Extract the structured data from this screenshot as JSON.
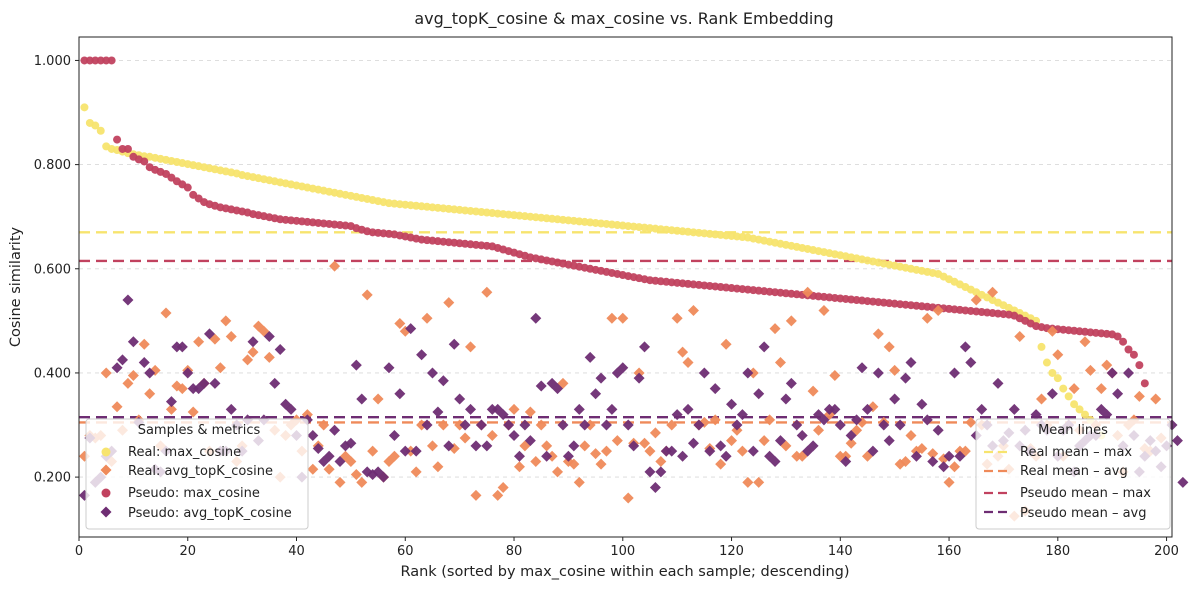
{
  "chart_data": {
    "type": "scatter",
    "title": "avg_topK_cosine & max_cosine vs. Rank Embedding",
    "xlabel": "Rank (sorted by max_cosine within each sample; descending)",
    "ylabel": "Cosine similarity",
    "xlim": [
      0,
      201
    ],
    "ylim": [
      0.085,
      1.045
    ],
    "xticks": [
      0,
      20,
      40,
      60,
      80,
      100,
      120,
      140,
      160,
      180,
      200
    ],
    "yticks": [
      0.2,
      0.4,
      0.6,
      0.8,
      1.0
    ],
    "ytick_labels": [
      "0.200",
      "0.400",
      "0.600",
      "0.800",
      "1.000"
    ],
    "grid": "y dashed",
    "legends": [
      {
        "title": "Samples & metrics",
        "placement": "lower-left",
        "entries": [
          "Real: max_cosine",
          "Real: avg_topK_cosine",
          "Pseudo: max_cosine",
          "Pseudo: avg_topK_cosine"
        ]
      },
      {
        "title": "Mean lines",
        "placement": "lower-right",
        "entries": [
          "Real mean – max",
          "Real mean – avg",
          "Pseudo mean – max",
          "Pseudo mean – avg"
        ]
      }
    ],
    "colors": {
      "real_max": "#f7e46e",
      "real_avg": "#ef8a5a",
      "pseudo_max": "#c1425f",
      "pseudo_avg": "#6e2d73"
    },
    "mean_lines": [
      {
        "name": "Real mean – max",
        "y": 0.67
      },
      {
        "name": "Real mean – avg",
        "y": 0.305
      },
      {
        "name": "Pseudo mean – max",
        "y": 0.615
      },
      {
        "name": "Pseudo mean – avg",
        "y": 0.315
      }
    ],
    "series": [
      {
        "name": "Real: max_cosine",
        "key": "real_max",
        "marker": "circle",
        "x_start": 1,
        "values": [
          0.91,
          0.88,
          0.875,
          0.865,
          0.835,
          0.83,
          0.828,
          0.825,
          0.822,
          0.82,
          0.818,
          0.816,
          0.815,
          0.813,
          0.811,
          0.809,
          0.807,
          0.805,
          0.803,
          0.801,
          0.799,
          0.797,
          0.795,
          0.793,
          0.791,
          0.789,
          0.787,
          0.785,
          0.783,
          0.78,
          0.778,
          0.776,
          0.774,
          0.772,
          0.77,
          0.768,
          0.766,
          0.764,
          0.762,
          0.76,
          0.758,
          0.756,
          0.754,
          0.752,
          0.75,
          0.748,
          0.746,
          0.744,
          0.742,
          0.74,
          0.738,
          0.736,
          0.734,
          0.732,
          0.73,
          0.728,
          0.726,
          0.725,
          0.724,
          0.723,
          0.722,
          0.721,
          0.72,
          0.719,
          0.718,
          0.717,
          0.716,
          0.715,
          0.714,
          0.713,
          0.712,
          0.711,
          0.71,
          0.709,
          0.708,
          0.707,
          0.706,
          0.705,
          0.704,
          0.703,
          0.702,
          0.701,
          0.7,
          0.699,
          0.698,
          0.697,
          0.696,
          0.695,
          0.694,
          0.693,
          0.692,
          0.691,
          0.69,
          0.689,
          0.688,
          0.687,
          0.686,
          0.685,
          0.684,
          0.683,
          0.682,
          0.681,
          0.68,
          0.679,
          0.678,
          0.677,
          0.676,
          0.675,
          0.674,
          0.673,
          0.672,
          0.671,
          0.67,
          0.669,
          0.668,
          0.667,
          0.666,
          0.665,
          0.664,
          0.663,
          0.662,
          0.661,
          0.66,
          0.658,
          0.656,
          0.654,
          0.652,
          0.65,
          0.648,
          0.646,
          0.644,
          0.642,
          0.64,
          0.638,
          0.636,
          0.634,
          0.632,
          0.63,
          0.628,
          0.626,
          0.624,
          0.622,
          0.62,
          0.618,
          0.616,
          0.614,
          0.612,
          0.61,
          0.608,
          0.606,
          0.604,
          0.602,
          0.6,
          0.598,
          0.596,
          0.594,
          0.592,
          0.59,
          0.585,
          0.58,
          0.575,
          0.57,
          0.565,
          0.56,
          0.555,
          0.55,
          0.545,
          0.54,
          0.535,
          0.53,
          0.525,
          0.52,
          0.515,
          0.51,
          0.505,
          0.5,
          0.45,
          0.42,
          0.4,
          0.39,
          0.37,
          0.355,
          0.34,
          0.33,
          0.32,
          0.31,
          0.3,
          0.28
        ]
      },
      {
        "name": "Pseudo: max_cosine",
        "key": "pseudo_max",
        "marker": "circle",
        "x_start": 1,
        "values": [
          1.0,
          1.0,
          1.0,
          1.0,
          1.0,
          1.0,
          0.848,
          0.83,
          0.83,
          0.815,
          0.81,
          0.806,
          0.795,
          0.79,
          0.786,
          0.782,
          0.775,
          0.768,
          0.762,
          0.756,
          0.742,
          0.735,
          0.728,
          0.724,
          0.721,
          0.718,
          0.716,
          0.714,
          0.712,
          0.71,
          0.708,
          0.705,
          0.703,
          0.701,
          0.699,
          0.697,
          0.695,
          0.694,
          0.693,
          0.692,
          0.691,
          0.69,
          0.689,
          0.688,
          0.687,
          0.686,
          0.685,
          0.684,
          0.683,
          0.682,
          0.678,
          0.675,
          0.672,
          0.67,
          0.669,
          0.668,
          0.667,
          0.666,
          0.664,
          0.662,
          0.66,
          0.658,
          0.656,
          0.655,
          0.654,
          0.653,
          0.652,
          0.651,
          0.65,
          0.649,
          0.648,
          0.647,
          0.646,
          0.645,
          0.644,
          0.643,
          0.64,
          0.637,
          0.634,
          0.631,
          0.628,
          0.625,
          0.622,
          0.62,
          0.618,
          0.616,
          0.614,
          0.612,
          0.61,
          0.608,
          0.606,
          0.604,
          0.602,
          0.6,
          0.598,
          0.596,
          0.594,
          0.592,
          0.59,
          0.588,
          0.586,
          0.584,
          0.582,
          0.58,
          0.578,
          0.577,
          0.576,
          0.575,
          0.574,
          0.573,
          0.572,
          0.571,
          0.57,
          0.569,
          0.568,
          0.567,
          0.566,
          0.565,
          0.564,
          0.563,
          0.562,
          0.561,
          0.56,
          0.559,
          0.558,
          0.557,
          0.556,
          0.555,
          0.554,
          0.553,
          0.552,
          0.551,
          0.55,
          0.549,
          0.548,
          0.547,
          0.546,
          0.545,
          0.544,
          0.543,
          0.542,
          0.541,
          0.54,
          0.539,
          0.538,
          0.537,
          0.536,
          0.535,
          0.534,
          0.533,
          0.532,
          0.531,
          0.53,
          0.529,
          0.528,
          0.527,
          0.526,
          0.525,
          0.524,
          0.523,
          0.522,
          0.521,
          0.52,
          0.519,
          0.518,
          0.517,
          0.516,
          0.515,
          0.514,
          0.513,
          0.512,
          0.51,
          0.505,
          0.5,
          0.495,
          0.49,
          0.488,
          0.486,
          0.485,
          0.484,
          0.483,
          0.482,
          0.481,
          0.48,
          0.479,
          0.478,
          0.477,
          0.476,
          0.475,
          0.474,
          0.47,
          0.46,
          0.445,
          0.435,
          0.415,
          0.38
        ]
      },
      {
        "name": "Real: avg_topK_cosine",
        "key": "real_avg",
        "marker": "diamond",
        "x_start": 1,
        "values": [
          0.24,
          0.28,
          0.275,
          0.28,
          0.4,
          0.23,
          0.335,
          0.29,
          0.38,
          0.395,
          0.31,
          0.455,
          0.36,
          0.405,
          0.26,
          0.515,
          0.33,
          0.375,
          0.37,
          0.405,
          0.325,
          0.46,
          0.38,
          0.25,
          0.465,
          0.41,
          0.5,
          0.47,
          0.23,
          0.26,
          0.425,
          0.44,
          0.49,
          0.48,
          0.43,
          0.29,
          0.2,
          0.28,
          0.3,
          0.31,
          0.25,
          0.32,
          0.215,
          0.26,
          0.3,
          0.215,
          0.605,
          0.19,
          0.24,
          0.23,
          0.205,
          0.19,
          0.55,
          0.25,
          0.35,
          0.2,
          0.23,
          0.24,
          0.495,
          0.48,
          0.25,
          0.21,
          0.3,
          0.505,
          0.26,
          0.22,
          0.3,
          0.535,
          0.255,
          0.3,
          0.275,
          0.45,
          0.165,
          0.3,
          0.555,
          0.28,
          0.165,
          0.18,
          0.3,
          0.33,
          0.22,
          0.26,
          0.325,
          0.23,
          0.3,
          0.26,
          0.24,
          0.21,
          0.38,
          0.23,
          0.225,
          0.19,
          0.26,
          0.3,
          0.245,
          0.225,
          0.25,
          0.505,
          0.27,
          0.505,
          0.16,
          0.265,
          0.4,
          0.265,
          0.25,
          0.285,
          0.23,
          0.25,
          0.3,
          0.505,
          0.44,
          0.42,
          0.52,
          0.3,
          0.305,
          0.255,
          0.31,
          0.225,
          0.455,
          0.27,
          0.29,
          0.25,
          0.19,
          0.4,
          0.19,
          0.27,
          0.31,
          0.485,
          0.42,
          0.26,
          0.5,
          0.24,
          0.24,
          0.555,
          0.365,
          0.29,
          0.52,
          0.32,
          0.395,
          0.24,
          0.24,
          0.265,
          0.29,
          0.305,
          0.24,
          0.335,
          0.475,
          0.305,
          0.45,
          0.405,
          0.225,
          0.23,
          0.28,
          0.25,
          0.255,
          0.505,
          0.245,
          0.52,
          0.235,
          0.19,
          0.22,
          0.25,
          0.25,
          0.305,
          0.54,
          0.3,
          0.225,
          0.555,
          0.24,
          0.26,
          0.215,
          0.125,
          0.47,
          0.135,
          0.255,
          0.24,
          0.35,
          0.3,
          0.48,
          0.435,
          0.24,
          0.3,
          0.37,
          0.29,
          0.46,
          0.405,
          0.3,
          0.37,
          0.415,
          0.4,
          0.28,
          0.21,
          0.3,
          0.31,
          0.355,
          0.255,
          0.25,
          0.35,
          0.275
        ]
      },
      {
        "name": "Pseudo: avg_topK_cosine",
        "key": "pseudo_avg",
        "marker": "diamond",
        "x_start": 1,
        "values": [
          0.165,
          0.275,
          0.19,
          0.2,
          0.24,
          0.25,
          0.41,
          0.425,
          0.54,
          0.46,
          0.305,
          0.42,
          0.4,
          0.215,
          0.21,
          0.25,
          0.345,
          0.45,
          0.45,
          0.4,
          0.37,
          0.37,
          0.38,
          0.475,
          0.38,
          0.25,
          0.25,
          0.33,
          0.3,
          0.25,
          0.31,
          0.46,
          0.27,
          0.31,
          0.47,
          0.38,
          0.445,
          0.34,
          0.33,
          0.28,
          0.2,
          0.31,
          0.28,
          0.255,
          0.23,
          0.24,
          0.29,
          0.23,
          0.26,
          0.265,
          0.415,
          0.35,
          0.21,
          0.205,
          0.21,
          0.2,
          0.41,
          0.28,
          0.36,
          0.25,
          0.485,
          0.25,
          0.435,
          0.3,
          0.4,
          0.325,
          0.385,
          0.26,
          0.455,
          0.35,
          0.3,
          0.33,
          0.26,
          0.3,
          0.26,
          0.33,
          0.33,
          0.32,
          0.3,
          0.28,
          0.24,
          0.3,
          0.27,
          0.505,
          0.375,
          0.24,
          0.38,
          0.37,
          0.3,
          0.24,
          0.26,
          0.33,
          0.3,
          0.43,
          0.36,
          0.39,
          0.3,
          0.33,
          0.4,
          0.41,
          0.3,
          0.26,
          0.39,
          0.45,
          0.21,
          0.18,
          0.21,
          0.25,
          0.25,
          0.32,
          0.24,
          0.33,
          0.265,
          0.3,
          0.4,
          0.25,
          0.37,
          0.26,
          0.24,
          0.34,
          0.3,
          0.32,
          0.4,
          0.25,
          0.36,
          0.45,
          0.24,
          0.23,
          0.27,
          0.35,
          0.38,
          0.3,
          0.28,
          0.25,
          0.26,
          0.32,
          0.31,
          0.33,
          0.33,
          0.3,
          0.23,
          0.28,
          0.31,
          0.41,
          0.33,
          0.25,
          0.4,
          0.3,
          0.27,
          0.35,
          0.3,
          0.39,
          0.42,
          0.24,
          0.34,
          0.31,
          0.23,
          0.29,
          0.22,
          0.24,
          0.4,
          0.24,
          0.45,
          0.42,
          0.28,
          0.33,
          0.3,
          0.26,
          0.38,
          0.27,
          0.285,
          0.33,
          0.26,
          0.29,
          0.25,
          0.32,
          0.3,
          0.29,
          0.36,
          0.24,
          0.29,
          0.3,
          0.21,
          0.26,
          0.27,
          0.28,
          0.28,
          0.33,
          0.32,
          0.4,
          0.36,
          0.26,
          0.4,
          0.28,
          0.21,
          0.24,
          0.27,
          0.25,
          0.22,
          0.26,
          0.3,
          0.27,
          0.19
        ]
      }
    ]
  }
}
